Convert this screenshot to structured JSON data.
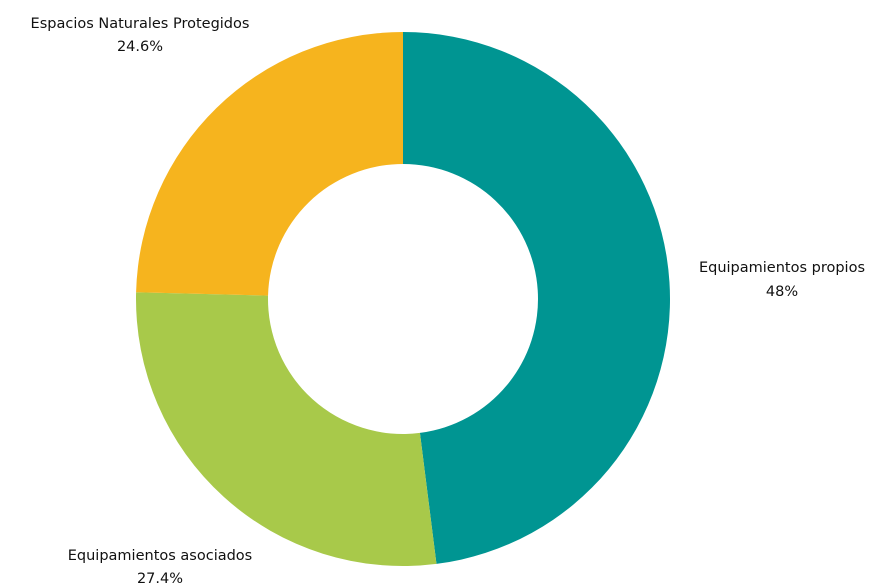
{
  "chart_data": {
    "type": "pie",
    "donut": true,
    "title": "",
    "slices": [
      {
        "label": "Equipamientos propios",
        "value": 48,
        "value_label": "48%",
        "color": "#009592"
      },
      {
        "label": "Equipamientos asociados",
        "value": 27.4,
        "value_label": "27.4%",
        "color": "#a8c94a"
      },
      {
        "label": "Espacios Naturales Protegidos",
        "value": 24.6,
        "value_label": "24.6%",
        "color": "#f6b41e"
      }
    ],
    "start_angle": "top",
    "direction": "clockwise",
    "legend": "none"
  }
}
